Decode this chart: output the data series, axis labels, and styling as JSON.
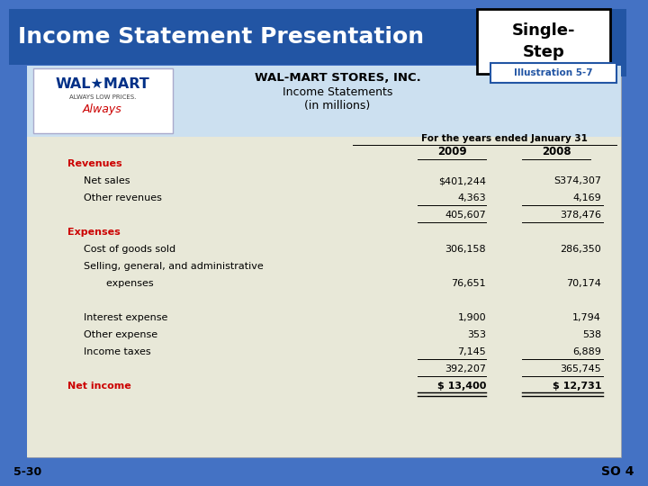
{
  "title": "Income Statement Presentation",
  "badge": "Single-\nStep",
  "illustration": "Illustration 5-7",
  "company": "WAL-MART STORES, INC.",
  "subtitle1": "Income Statements",
  "subtitle2": "(in millions)",
  "col_header": "For the years ended January 31",
  "col2009": "2009",
  "col2008": "2008",
  "header_bg": "#2255a4",
  "header_fg": "#ffffff",
  "table_bg": "#e8e8d8",
  "logo_bg": "#cce0f0",
  "red_color": "#cc0000",
  "rows": [
    {
      "label": "Revenues",
      "val2009": "",
      "val2008": "",
      "bold": true,
      "red": true,
      "indent": 0
    },
    {
      "label": "Net sales",
      "val2009": "$401,244",
      "val2008": "S374,307",
      "bold": false,
      "red": false,
      "indent": 1
    },
    {
      "label": "Other revenues",
      "val2009": "4,363",
      "val2008": "4,169",
      "bold": false,
      "red": false,
      "indent": 1,
      "underline_vals": true
    },
    {
      "label": "",
      "val2009": "405,607",
      "val2008": "378,476",
      "bold": false,
      "red": false,
      "indent": 1,
      "underline_vals": true
    },
    {
      "label": "Expenses",
      "val2009": "",
      "val2008": "",
      "bold": true,
      "red": true,
      "indent": 0
    },
    {
      "label": "Cost of goods sold",
      "val2009": "306,158",
      "val2008": "286,350",
      "bold": false,
      "red": false,
      "indent": 1
    },
    {
      "label": "Selling, general, and administrative",
      "val2009": "",
      "val2008": "",
      "bold": false,
      "red": false,
      "indent": 1
    },
    {
      "label": "  expenses",
      "val2009": "76,651",
      "val2008": "70,174",
      "bold": false,
      "red": false,
      "indent": 2
    },
    {
      "label": "",
      "val2009": "",
      "val2008": "",
      "bold": false,
      "red": false,
      "indent": 0,
      "spacer": true
    },
    {
      "label": "Interest expense",
      "val2009": "1,900",
      "val2008": "1,794",
      "bold": false,
      "red": false,
      "indent": 1
    },
    {
      "label": "Other expense",
      "val2009": "353",
      "val2008": "538",
      "bold": false,
      "red": false,
      "indent": 1
    },
    {
      "label": "Income taxes",
      "val2009": "7,145",
      "val2008": "6,889",
      "bold": false,
      "red": false,
      "indent": 1,
      "underline_vals": true
    },
    {
      "label": "",
      "val2009": "392,207",
      "val2008": "365,745",
      "bold": false,
      "red": false,
      "indent": 1,
      "underline_vals": true
    },
    {
      "label": "Net income",
      "val2009": "$ 13,400",
      "val2008": "$ 12,731",
      "bold": true,
      "red": true,
      "indent": 0,
      "double_underline": true
    }
  ],
  "footer_left": "5-30",
  "footer_right": "SO 4",
  "bg_color": "#4472c4"
}
